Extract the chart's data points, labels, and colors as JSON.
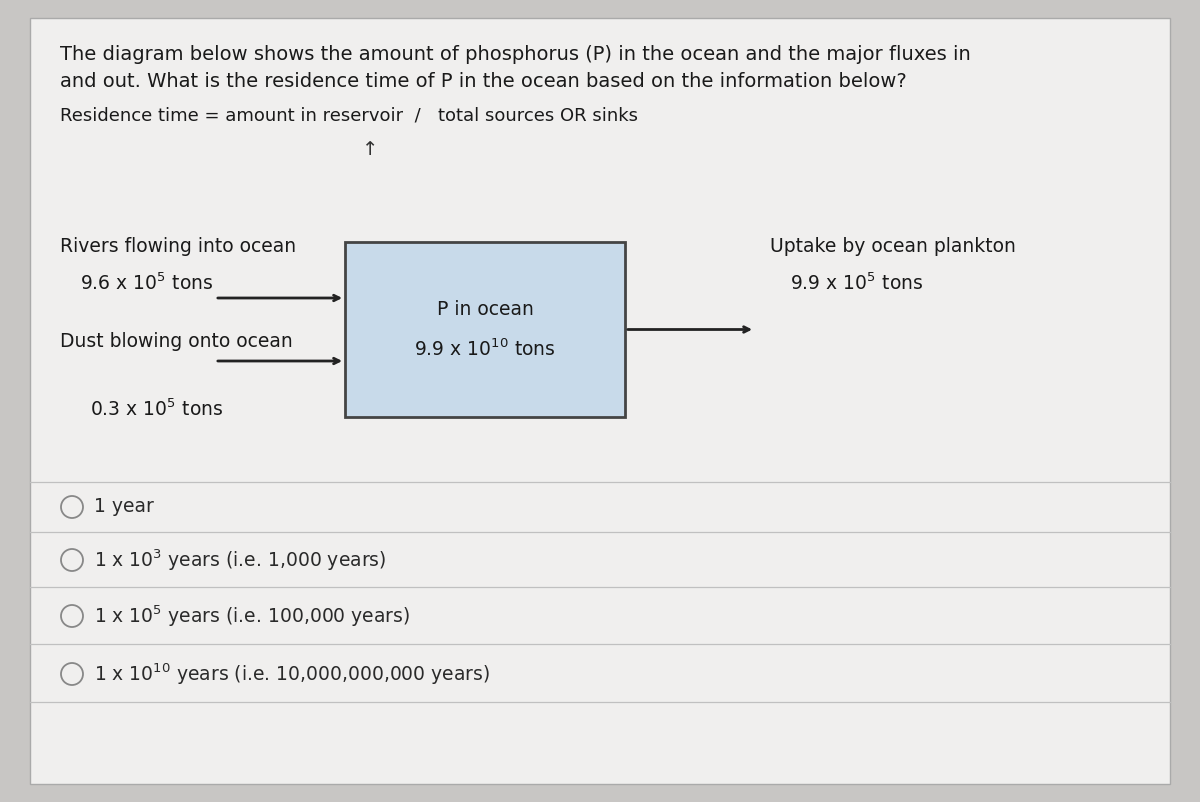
{
  "bg_color": "#f0efee",
  "outer_bg": "#c8c6c4",
  "title_line1": "The diagram below shows the amount of phosphorus (P) in the ocean and the major fluxes in",
  "title_line2": "and out. What is the residence time of P in the ocean based on the information below?",
  "formula_text": "Residence time = amount in reservoir  /   total sources OR sinks",
  "box_color": "#c8daea",
  "box_border": "#444444",
  "arrow_color": "#222222",
  "text_color": "#1a1a1a",
  "option_text_color": "#2a2a2a",
  "font_size_title": 14,
  "font_size_formula": 13,
  "font_size_box": 13.5,
  "font_size_labels": 13.5,
  "font_size_options": 13.5,
  "font_size_super": 9.5
}
